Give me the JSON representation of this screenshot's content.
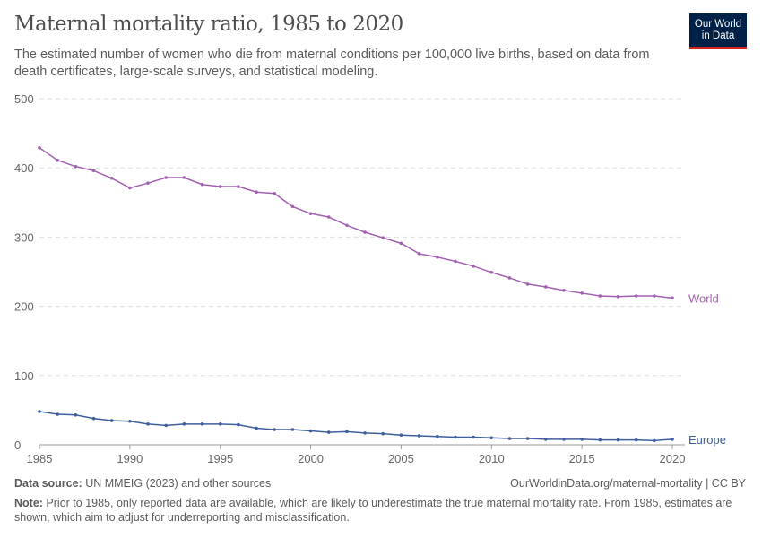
{
  "title": "Maternal mortality ratio, 1985 to 2020",
  "subtitle": "The estimated number of women who die from maternal conditions per 100,000 live births, based on data from death certificates, large-scale surveys, and statistical modeling.",
  "logo": {
    "line1": "Our World",
    "line2": "in Data",
    "bg": "#002147",
    "accent": "#ce261e"
  },
  "footer": {
    "source_label": "Data source:",
    "source": " UN MMEIG (2023) and other sources",
    "url": "OurWorldinData.org/maternal-mortality | CC BY",
    "note_label": "Note:",
    "note": " Prior to 1985, only reported data are available, which are likely to underestimate the true maternal mortality rate. From 1985, estimates are shown, which aim to adjust for underreporting and misclassification."
  },
  "chart_data": {
    "type": "line",
    "title": "Maternal mortality ratio, 1985 to 2020",
    "xlim": [
      1985,
      2020
    ],
    "ylim": [
      0,
      500
    ],
    "yticks": [
      0,
      100,
      200,
      300,
      400,
      500
    ],
    "xticks": [
      1985,
      1990,
      1995,
      2000,
      2005,
      2010,
      2015,
      2020
    ],
    "grid": true,
    "legend": "inline-right",
    "x": [
      1985,
      1986,
      1987,
      1988,
      1989,
      1990,
      1991,
      1992,
      1993,
      1994,
      1995,
      1996,
      1997,
      1998,
      1999,
      2000,
      2001,
      2002,
      2003,
      2004,
      2005,
      2006,
      2007,
      2008,
      2009,
      2010,
      2011,
      2012,
      2013,
      2014,
      2015,
      2016,
      2017,
      2018,
      2019,
      2020
    ],
    "series": [
      {
        "name": "World",
        "color": "#a261b0",
        "values": [
          429,
          411,
          402,
          396,
          385,
          371,
          378,
          386,
          386,
          376,
          373,
          373,
          365,
          363,
          344,
          334,
          329,
          317,
          307,
          299,
          291,
          276,
          271,
          265,
          258,
          249,
          241,
          232,
          228,
          223,
          219,
          215,
          214,
          215,
          215,
          212
        ]
      },
      {
        "name": "Europe",
        "color": "#3e5f9e",
        "values": [
          48,
          44,
          43,
          38,
          35,
          34,
          30,
          28,
          30,
          30,
          30,
          29,
          24,
          22,
          22,
          20,
          18,
          19,
          17,
          16,
          14,
          13,
          12,
          11,
          11,
          10,
          9,
          9,
          8,
          8,
          8,
          7,
          7,
          7,
          6,
          8
        ]
      }
    ]
  }
}
